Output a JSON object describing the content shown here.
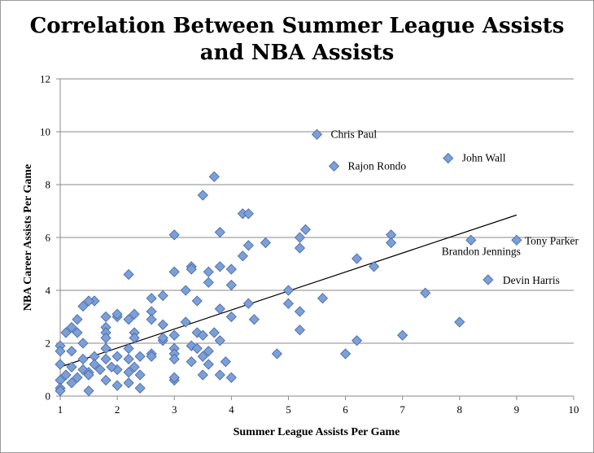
{
  "chart_data": {
    "type": "scatter",
    "title": "Correlation Between Summer League Assists",
    "title_line2": "and NBA Assists",
    "xlabel": "Summer League Assists Per Game",
    "ylabel": "NBA Career Assists Per Game",
    "xlim": [
      1,
      10
    ],
    "ylim": [
      0,
      12
    ],
    "x_ticks": [
      1,
      2,
      3,
      4,
      5,
      6,
      7,
      8,
      9,
      10
    ],
    "y_ticks": [
      0,
      2,
      4,
      6,
      8,
      10,
      12
    ],
    "grid": "horizontal",
    "marker": "diamond",
    "marker_color": "#7c9fd6",
    "trendline": {
      "x": [
        1,
        9
      ],
      "y": [
        1.1,
        6.85
      ]
    },
    "points": [
      [
        5.5,
        9.9
      ],
      [
        7.8,
        9.0
      ],
      [
        5.8,
        8.7
      ],
      [
        3.7,
        8.3
      ],
      [
        3.5,
        7.6
      ],
      [
        4.2,
        6.9
      ],
      [
        4.3,
        6.9
      ],
      [
        5.3,
        6.3
      ],
      [
        3.0,
        6.1
      ],
      [
        3.8,
        6.2
      ],
      [
        6.8,
        6.1
      ],
      [
        5.2,
        6.0
      ],
      [
        6.8,
        5.8
      ],
      [
        4.6,
        5.8
      ],
      [
        8.2,
        5.9
      ],
      [
        9.0,
        5.9
      ],
      [
        4.3,
        5.7
      ],
      [
        5.2,
        5.6
      ],
      [
        4.2,
        5.3
      ],
      [
        6.2,
        5.2
      ],
      [
        3.3,
        4.9
      ],
      [
        3.8,
        4.9
      ],
      [
        6.5,
        4.9
      ],
      [
        3.0,
        4.7
      ],
      [
        3.6,
        4.7
      ],
      [
        2.2,
        4.6
      ],
      [
        4.0,
        4.8
      ],
      [
        3.3,
        4.8
      ],
      [
        8.5,
        4.4
      ],
      [
        3.6,
        4.3
      ],
      [
        4.0,
        4.2
      ],
      [
        3.2,
        4.0
      ],
      [
        5.0,
        4.0
      ],
      [
        7.4,
        3.9
      ],
      [
        2.8,
        3.8
      ],
      [
        2.6,
        3.7
      ],
      [
        5.6,
        3.7
      ],
      [
        1.6,
        3.6
      ],
      [
        1.5,
        3.6
      ],
      [
        1.4,
        3.4
      ],
      [
        4.3,
        3.5
      ],
      [
        5.0,
        3.5
      ],
      [
        3.4,
        3.6
      ],
      [
        3.8,
        3.3
      ],
      [
        5.2,
        3.2
      ],
      [
        2.6,
        3.2
      ],
      [
        2.3,
        3.1
      ],
      [
        1.8,
        3.0
      ],
      [
        2.0,
        3.0
      ],
      [
        2.0,
        3.1
      ],
      [
        2.2,
        2.9
      ],
      [
        4.0,
        3.0
      ],
      [
        2.6,
        2.9
      ],
      [
        1.3,
        2.9
      ],
      [
        4.4,
        2.9
      ],
      [
        8.0,
        2.8
      ],
      [
        3.2,
        2.8
      ],
      [
        2.8,
        2.7
      ],
      [
        1.8,
        2.6
      ],
      [
        1.2,
        2.6
      ],
      [
        1.1,
        2.4
      ],
      [
        1.3,
        2.4
      ],
      [
        1.8,
        2.4
      ],
      [
        2.3,
        2.4
      ],
      [
        3.4,
        2.4
      ],
      [
        3.7,
        2.4
      ],
      [
        3.5,
        2.3
      ],
      [
        5.2,
        2.5
      ],
      [
        7.0,
        2.3
      ],
      [
        1.8,
        2.2
      ],
      [
        2.3,
        2.2
      ],
      [
        3.0,
        2.3
      ],
      [
        3.8,
        2.1
      ],
      [
        6.2,
        2.1
      ],
      [
        2.8,
        2.1
      ],
      [
        1.4,
        2.0
      ],
      [
        3.3,
        1.9
      ],
      [
        1.0,
        1.9
      ],
      [
        2.2,
        1.8
      ],
      [
        3.0,
        1.8
      ],
      [
        3.4,
        1.8
      ],
      [
        1.0,
        1.7
      ],
      [
        1.2,
        1.7
      ],
      [
        1.8,
        1.8
      ],
      [
        2.6,
        1.6
      ],
      [
        3.0,
        1.6
      ],
      [
        3.6,
        1.7
      ],
      [
        4.8,
        1.6
      ],
      [
        6.0,
        1.6
      ],
      [
        1.6,
        1.5
      ],
      [
        2.0,
        1.5
      ],
      [
        2.4,
        1.5
      ],
      [
        3.5,
        1.5
      ],
      [
        3.9,
        1.3
      ],
      [
        1.4,
        1.4
      ],
      [
        1.8,
        1.4
      ],
      [
        2.2,
        1.4
      ],
      [
        2.6,
        1.5
      ],
      [
        3.0,
        1.4
      ],
      [
        3.3,
        1.3
      ],
      [
        1.0,
        1.2
      ],
      [
        1.2,
        1.1
      ],
      [
        2.3,
        1.1
      ],
      [
        3.6,
        1.2
      ],
      [
        1.4,
        1.0
      ],
      [
        1.5,
        0.9
      ],
      [
        1.7,
        1.0
      ],
      [
        2.0,
        1.0
      ],
      [
        2.2,
        0.9
      ],
      [
        3.8,
        0.8
      ],
      [
        1.1,
        0.8
      ],
      [
        1.3,
        0.7
      ],
      [
        1.5,
        0.8
      ],
      [
        2.4,
        0.8
      ],
      [
        3.5,
        0.8
      ],
      [
        1.0,
        0.6
      ],
      [
        1.2,
        0.5
      ],
      [
        1.8,
        0.6
      ],
      [
        2.2,
        0.5
      ],
      [
        3.0,
        0.6
      ],
      [
        4.0,
        0.7
      ],
      [
        1.0,
        0.3
      ],
      [
        1.0,
        0.2
      ],
      [
        1.5,
        0.2
      ],
      [
        2.0,
        0.4
      ],
      [
        2.4,
        0.3
      ],
      [
        3.0,
        0.7
      ],
      [
        1.6,
        1.2
      ],
      [
        1.9,
        1.1
      ],
      [
        2.8,
        2.2
      ]
    ],
    "annotations": [
      {
        "label": "Chris Paul",
        "x": 5.5,
        "y": 9.9,
        "dx": 17,
        "dy": 4
      },
      {
        "label": "John Wall",
        "x": 7.8,
        "y": 9.0,
        "dx": 17,
        "dy": 4
      },
      {
        "label": "Rajon Rondo",
        "x": 5.8,
        "y": 8.7,
        "dx": 17,
        "dy": 4
      },
      {
        "label": "Tony Parker",
        "x": 9.0,
        "y": 5.9,
        "dx": 10,
        "dy": 5
      },
      {
        "label": "Brandon Jennings",
        "x": 8.2,
        "y": 5.9,
        "dx": -36,
        "dy": 18
      },
      {
        "label": "Devin Harris",
        "x": 8.5,
        "y": 4.4,
        "dx": 18,
        "dy": 5
      }
    ]
  }
}
